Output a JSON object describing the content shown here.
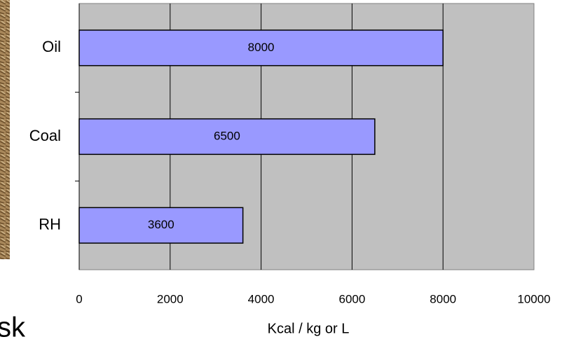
{
  "chart_data": {
    "type": "bar",
    "orientation": "horizontal",
    "categories": [
      "Oil",
      "Coal",
      "RH"
    ],
    "values": [
      8000,
      6500,
      3600
    ],
    "color": "#9999ff",
    "xlim": [
      0,
      10000
    ],
    "xticks": [
      0,
      2000,
      4000,
      6000,
      8000,
      10000
    ],
    "grid": true,
    "x_label": "Kcal / kg or L"
  },
  "caption": "sk"
}
